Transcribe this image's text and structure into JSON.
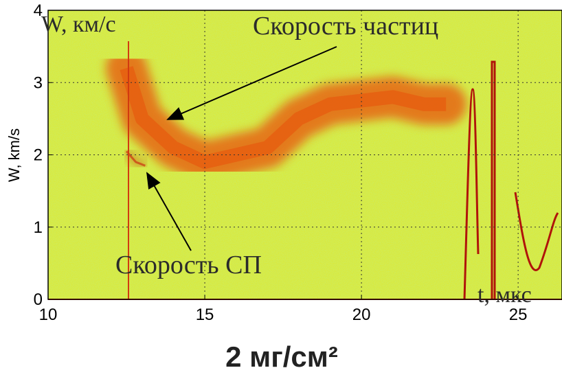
{
  "chart_data": {
    "type": "spectrogram",
    "ylabel": "W, km/s",
    "annotations": [
      "W, км/с",
      "Скорость частиц",
      "Скорость СП",
      "t, мкс"
    ],
    "caption": "2 мг/см²",
    "xlim": [
      10,
      26.4
    ],
    "ylim": [
      0,
      4
    ],
    "xticks": [
      10,
      15,
      20,
      25
    ],
    "yticks": [
      0,
      1,
      2,
      3,
      4
    ],
    "grid": true,
    "series": [
      {
        "name": "Скорость частиц",
        "color": "#e8540c",
        "x": [
          12.5,
          13,
          14,
          15,
          16,
          17,
          18,
          19,
          20,
          21,
          22,
          22.7
        ],
        "values": [
          3.2,
          2.5,
          2.1,
          1.9,
          2.0,
          2.1,
          2.5,
          2.7,
          2.75,
          2.8,
          2.7,
          2.7
        ]
      },
      {
        "name": "Скорость СП",
        "color": "#c8200a",
        "x": [
          12.5,
          12.8,
          13.1
        ],
        "values": [
          2.05,
          1.9,
          1.85
        ]
      }
    ]
  }
}
